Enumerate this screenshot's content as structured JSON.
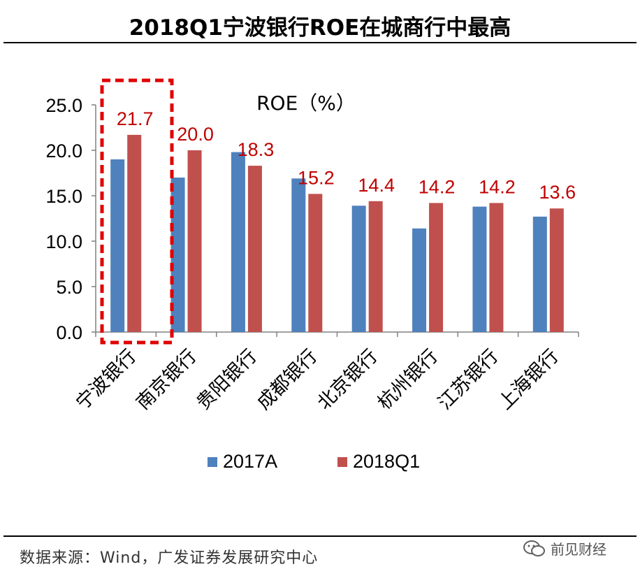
{
  "title": "2018Q1宁波银行ROE在城商行中最高",
  "source": "数据来源：Wind，广发证券发展研究中心",
  "watermark": "前见财经",
  "colors": {
    "series_2017A": "#4f81bd",
    "series_2018Q1": "#c0504d",
    "value_label": "#c00000",
    "highlight_box": "#e00000"
  },
  "chart_data": {
    "type": "bar",
    "title": "ROE（%）",
    "xlabel": "",
    "ylabel": "",
    "categories": [
      "宁波银行",
      "南京银行",
      "贵阳银行",
      "成都银行",
      "北京银行",
      "杭州银行",
      "江苏银行",
      "上海银行"
    ],
    "series": [
      {
        "name": "2017A",
        "values": [
          19.0,
          17.0,
          19.8,
          16.9,
          13.9,
          11.4,
          13.8,
          12.7
        ]
      },
      {
        "name": "2018Q1",
        "values": [
          21.7,
          20.0,
          18.3,
          15.2,
          14.4,
          14.2,
          14.2,
          13.6
        ]
      }
    ],
    "data_labels": [
      "21.7",
      "20.0",
      "18.3",
      "15.2",
      "14.4",
      "14.2",
      "14.2",
      "13.6"
    ],
    "y_ticks": [
      "0.0",
      "5.0",
      "10.0",
      "15.0",
      "20.0",
      "25.0"
    ],
    "ylim": [
      0,
      25
    ],
    "grid": false,
    "legend_position": "bottom",
    "highlight_category": "宁波银行"
  }
}
